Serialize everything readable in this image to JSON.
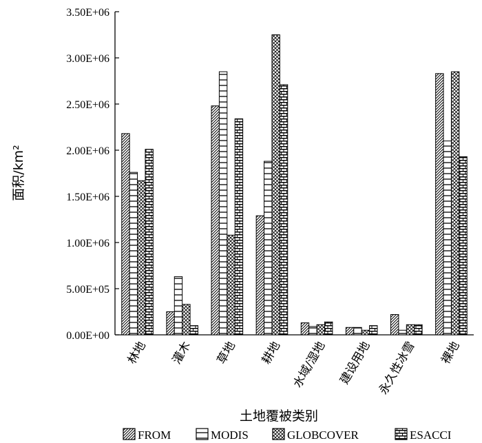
{
  "chart_data": {
    "type": "bar",
    "xlabel": "土地覆被类别",
    "ylabel": "面积/km²",
    "ylim": [
      0,
      3500000
    ],
    "yticks": [
      0,
      500000,
      1000000,
      1500000,
      2000000,
      2500000,
      3000000,
      3500000
    ],
    "ytick_labels": [
      "0.00E+00",
      "5.00E+05",
      "1.00E+06",
      "1.50E+06",
      "2.00E+06",
      "2.50E+06",
      "3.00E+06",
      "3.50E+06"
    ],
    "categories": [
      "林地",
      "灌木",
      "草地",
      "耕地",
      "水域/湿地",
      "建设用地",
      "永久性冰雪",
      "裸地"
    ],
    "series": [
      {
        "name": "FROM",
        "pattern": "diagonal",
        "values": [
          2180000,
          250000,
          2480000,
          1290000,
          130000,
          80000,
          220000,
          2830000
        ]
      },
      {
        "name": "MODIS",
        "pattern": "horizontal",
        "values": [
          1760000,
          630000,
          2850000,
          1880000,
          90000,
          80000,
          50000,
          2100000
        ]
      },
      {
        "name": "GLOBCOVER",
        "pattern": "crosshatch",
        "values": [
          1670000,
          330000,
          1080000,
          3250000,
          110000,
          50000,
          110000,
          2850000
        ]
      },
      {
        "name": "ESACCI",
        "pattern": "brick",
        "values": [
          2010000,
          100000,
          2340000,
          2710000,
          140000,
          100000,
          110000,
          1930000
        ]
      }
    ],
    "legend_position": "bottom",
    "grid": false
  }
}
